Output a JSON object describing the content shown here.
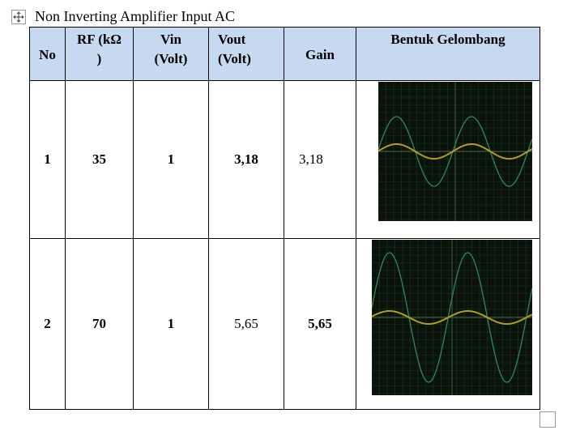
{
  "caption": "Non Inverting Amplifier Input AC",
  "headers": {
    "no": "No",
    "rf_line1": "RF (kΩ",
    "rf_line2": ")",
    "vin_line1": "Vin",
    "vin_line2": "(Volt)",
    "vout_line1": "Vout",
    "vout_line2": "(Volt)",
    "gain": "Gain",
    "wave": "Bentuk Gelombang"
  },
  "rows": [
    {
      "no": "1",
      "rf": "35",
      "vin": "1",
      "vout": "3,18",
      "gain": "3,18"
    },
    {
      "no": "2",
      "rf": "70",
      "vin": "1",
      "vout": "5,65",
      "gain": "5,65"
    }
  ],
  "icons": {
    "table_move": "four-arrows-move-icon",
    "table_resize": "resize-square-icon"
  },
  "colors": {
    "header_bg": "#c6d9f1",
    "scope_bg": "#0b120c",
    "scope_grid": "#1f5a2a",
    "trace_output": "#2e8b57",
    "trace_input": "#b59a2a"
  }
}
